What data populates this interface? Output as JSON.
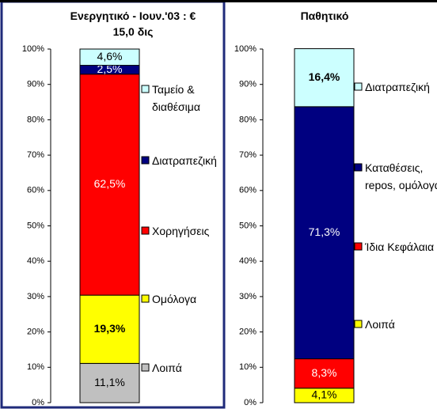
{
  "chart_data": [
    {
      "type": "stacked-bar",
      "title": "Ενεργητικό - Ιουν.'03 : € 15,0 δις",
      "ylim": [
        0,
        100
      ],
      "yticks": [
        {
          "value": 0,
          "label": "0%"
        },
        {
          "value": 10,
          "label": "10%"
        },
        {
          "value": 20,
          "label": "20%"
        },
        {
          "value": 30,
          "label": "30%"
        },
        {
          "value": 40,
          "label": "40%"
        },
        {
          "value": 50,
          "label": "50%"
        },
        {
          "value": 60,
          "label": "60%"
        },
        {
          "value": 70,
          "label": "70%"
        },
        {
          "value": 80,
          "label": "80%"
        },
        {
          "value": 90,
          "label": "90%"
        },
        {
          "value": 100,
          "label": "100%"
        }
      ],
      "series": [
        {
          "name": "Λοιπά",
          "color": "#c0c0c0",
          "values": [
            11.1
          ],
          "value_labels": [
            "11,1%"
          ]
        },
        {
          "name": "Ομόλογα",
          "color": "#ffff00",
          "values": [
            19.3
          ],
          "value_labels": [
            "19,3%"
          ]
        },
        {
          "name": "Χορηγήσεις",
          "color": "#ff0000",
          "values": [
            62.5
          ],
          "value_labels": [
            "62,5%"
          ]
        },
        {
          "name": "Διατραπεζική",
          "color": "#000080",
          "values": [
            2.5
          ],
          "value_labels": [
            "2,5%"
          ]
        },
        {
          "name": "Ταμείο & διαθέσιμα",
          "color": "#ccffff",
          "values": [
            4.6
          ],
          "value_labels": [
            "4,6%"
          ]
        }
      ]
    },
    {
      "type": "stacked-bar",
      "title": "Παθητικό",
      "ylim": [
        0,
        100
      ],
      "yticks": [
        {
          "value": 0,
          "label": "0%"
        },
        {
          "value": 10,
          "label": "10%"
        },
        {
          "value": 20,
          "label": "20%"
        },
        {
          "value": 30,
          "label": "30%"
        },
        {
          "value": 40,
          "label": "40%"
        },
        {
          "value": 50,
          "label": "50%"
        },
        {
          "value": 60,
          "label": "60%"
        },
        {
          "value": 70,
          "label": "70%"
        },
        {
          "value": 80,
          "label": "80%"
        },
        {
          "value": 90,
          "label": "90%"
        },
        {
          "value": 100,
          "label": "100%"
        }
      ],
      "series": [
        {
          "name": "Λοιπά",
          "color": "#ffff00",
          "values": [
            4.1
          ],
          "value_labels": [
            "4,1%"
          ]
        },
        {
          "name": "Ίδια Κεφάλαια",
          "color": "#ff0000",
          "values": [
            8.3
          ],
          "value_labels": [
            "8,3%"
          ]
        },
        {
          "name": "Καταθέσεις, repos, ομόλογα",
          "color": "#000080",
          "values": [
            71.3
          ],
          "value_labels": [
            "71,3%"
          ]
        },
        {
          "name": "Διατραπεζική",
          "color": "#ccffff",
          "values": [
            16.4
          ],
          "value_labels": [
            "16,4%"
          ]
        }
      ]
    }
  ]
}
